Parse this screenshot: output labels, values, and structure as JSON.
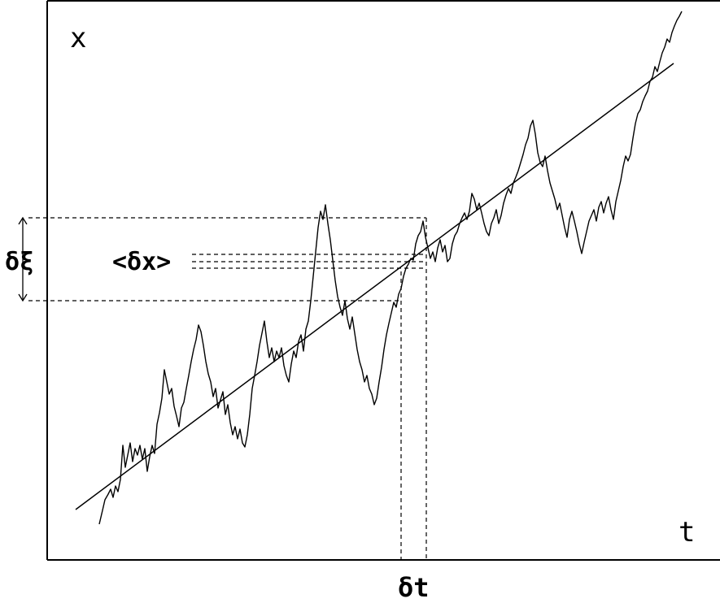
{
  "diagram": {
    "labels": {
      "y_axis": "x",
      "x_axis": "t",
      "delta_t": "δt",
      "delta_xi": "δξ",
      "mean_delta_x": "<δx>"
    },
    "colors": {
      "ink": "#000000",
      "background": "#ffffff"
    }
  }
}
